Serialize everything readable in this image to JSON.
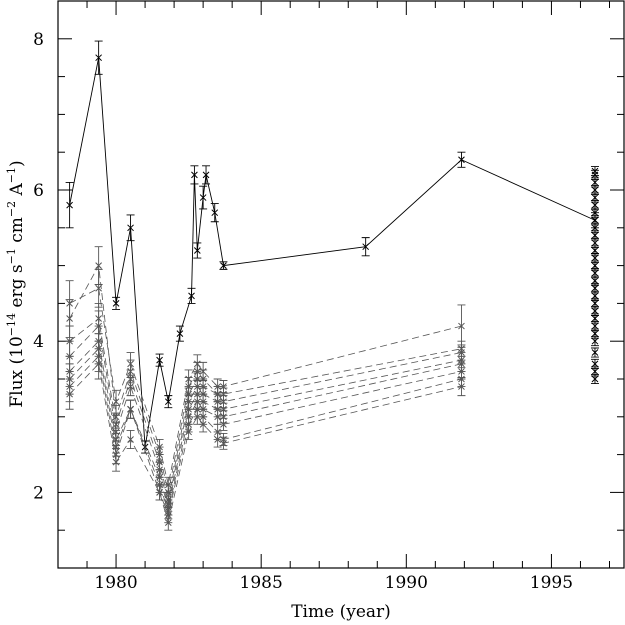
{
  "chart_data": {
    "type": "line",
    "title": "",
    "xlabel": "Time (year)",
    "ylabel_parts": [
      "Flux (10",
      "−14",
      " erg s",
      "−1",
      " cm",
      "−2",
      " A",
      "−1",
      ")"
    ],
    "xlim": [
      1978,
      1997.5
    ],
    "ylim": [
      1,
      8.5
    ],
    "x_ticks": [
      1980,
      1985,
      1990,
      1995
    ],
    "y_ticks": [
      2,
      4,
      6,
      8
    ],
    "x_minor_step": 1,
    "y_minor_step": 0.5,
    "grid": false,
    "legend": "none",
    "colors": {
      "axes": "#000000",
      "solid_series": "#000000",
      "dashed_series": "#555555"
    },
    "series": [
      {
        "style": "solid",
        "x": [
          1978.4,
          1979.4,
          1980.0,
          1980.5,
          1981.0,
          1981.5,
          1981.8,
          1982.2,
          1982.6,
          1982.7,
          1982.8,
          1983.0,
          1983.1,
          1983.4,
          1983.7,
          1988.6,
          1991.9,
          1996.5
        ],
        "y": [
          5.8,
          7.75,
          4.5,
          5.5,
          2.6,
          3.75,
          3.2,
          4.1,
          4.6,
          6.2,
          5.2,
          5.9,
          6.2,
          5.7,
          5.0,
          5.25,
          6.4,
          5.6
        ],
        "err": [
          0.3,
          0.22,
          0.08,
          0.17,
          0.08,
          0.08,
          0.08,
          0.1,
          0.1,
          0.12,
          0.1,
          0.15,
          0.12,
          0.12,
          0.05,
          0.12,
          0.1,
          0.1
        ],
        "cluster_y": [
          6.25,
          6.2,
          6.1,
          6.0,
          5.9,
          5.8,
          5.7,
          5.6,
          5.5,
          5.4,
          5.3,
          5.2,
          5.1,
          5.0,
          4.9,
          4.8,
          4.7,
          4.6,
          4.5,
          4.4,
          4.3,
          4.2,
          4.1,
          4.0,
          3.85,
          3.7,
          3.6,
          3.5
        ]
      },
      {
        "style": "dashed",
        "x": [
          1978.4,
          1979.4,
          1980.0,
          1980.5,
          1981.5,
          1981.8,
          1982.5,
          1982.8,
          1983.0,
          1983.5,
          1983.7,
          1991.9
        ],
        "y": [
          4.5,
          4.7,
          3.2,
          3.7,
          2.6,
          2.1,
          3.5,
          3.7,
          3.6,
          3.4,
          3.4,
          4.2
        ],
        "err": [
          0.3,
          0.25,
          0.15,
          0.15,
          0.1,
          0.1,
          0.12,
          0.12,
          0.12,
          0.1,
          0.08,
          0.28
        ]
      },
      {
        "style": "dashed",
        "x": [
          1978.4,
          1979.4,
          1980.0,
          1980.5,
          1981.5,
          1981.8,
          1982.5,
          1982.8,
          1983.0,
          1983.5,
          1983.7,
          1991.9
        ],
        "y": [
          4.3,
          5.0,
          3.0,
          3.6,
          2.5,
          2.0,
          3.4,
          3.6,
          3.5,
          3.3,
          3.3,
          3.9
        ],
        "err": [
          0.25,
          0.25,
          0.15,
          0.15,
          0.1,
          0.1,
          0.12,
          0.12,
          0.12,
          0.1,
          0.08,
          0.1
        ]
      },
      {
        "style": "dashed",
        "x": [
          1978.4,
          1979.4,
          1980.0,
          1980.5,
          1981.5,
          1981.8,
          1982.5,
          1982.8,
          1983.0,
          1983.5,
          1983.7,
          1991.9
        ],
        "y": [
          4.0,
          4.3,
          2.9,
          3.5,
          2.4,
          1.9,
          3.3,
          3.5,
          3.4,
          3.3,
          3.2,
          3.85
        ],
        "err": [
          0.2,
          0.2,
          0.12,
          0.12,
          0.1,
          0.1,
          0.1,
          0.1,
          0.1,
          0.1,
          0.08,
          0.1
        ]
      },
      {
        "style": "dashed",
        "x": [
          1978.4,
          1979.4,
          1980.0,
          1980.5,
          1981.5,
          1981.8,
          1982.5,
          1982.8,
          1983.0,
          1983.5,
          1983.7,
          1991.9
        ],
        "y": [
          3.8,
          4.2,
          2.8,
          3.4,
          2.3,
          1.85,
          3.2,
          3.4,
          3.3,
          3.2,
          3.1,
          3.75
        ],
        "err": [
          0.2,
          0.2,
          0.12,
          0.12,
          0.1,
          0.1,
          0.1,
          0.1,
          0.1,
          0.1,
          0.08,
          0.1
        ]
      },
      {
        "style": "dashed",
        "x": [
          1978.4,
          1979.4,
          1980.0,
          1980.5,
          1981.5,
          1981.8,
          1982.5,
          1982.8,
          1983.0,
          1983.5,
          1983.7,
          1991.9
        ],
        "y": [
          3.6,
          4.0,
          2.7,
          3.1,
          2.2,
          1.8,
          3.1,
          3.3,
          3.2,
          3.1,
          3.0,
          3.7
        ],
        "err": [
          0.2,
          0.2,
          0.12,
          0.12,
          0.1,
          0.1,
          0.1,
          0.1,
          0.1,
          0.1,
          0.08,
          0.1
        ]
      },
      {
        "style": "dashed",
        "x": [
          1978.4,
          1979.4,
          1980.0,
          1980.5,
          1981.5,
          1981.8,
          1982.5,
          1982.8,
          1983.0,
          1983.5,
          1983.7,
          1991.9
        ],
        "y": [
          3.5,
          3.9,
          2.6,
          3.1,
          2.1,
          1.75,
          3.0,
          3.2,
          3.1,
          3.0,
          2.9,
          3.6
        ],
        "err": [
          0.2,
          0.2,
          0.12,
          0.12,
          0.1,
          0.1,
          0.1,
          0.1,
          0.1,
          0.1,
          0.08,
          0.1
        ]
      },
      {
        "style": "dashed",
        "x": [
          1978.4,
          1979.4,
          1980.0,
          1980.5,
          1981.5,
          1981.8,
          1982.5,
          1982.8,
          1983.0,
          1983.5,
          1983.7,
          1991.9
        ],
        "y": [
          3.4,
          3.8,
          2.5,
          3.1,
          2.0,
          1.7,
          2.9,
          3.1,
          3.0,
          2.8,
          2.7,
          3.5
        ],
        "err": [
          0.2,
          0.2,
          0.12,
          0.12,
          0.1,
          0.1,
          0.1,
          0.1,
          0.1,
          0.1,
          0.08,
          0.1
        ]
      },
      {
        "style": "dashed",
        "x": [
          1978.4,
          1979.4,
          1980.0,
          1980.5,
          1981.5,
          1981.8,
          1982.5,
          1982.8,
          1983.0,
          1983.5,
          1983.7,
          1991.9
        ],
        "y": [
          3.3,
          3.7,
          2.4,
          2.7,
          2.0,
          1.6,
          2.8,
          3.0,
          2.9,
          2.7,
          2.65,
          3.4
        ],
        "err": [
          0.2,
          0.2,
          0.12,
          0.12,
          0.1,
          0.1,
          0.1,
          0.1,
          0.1,
          0.1,
          0.08,
          0.12
        ]
      }
    ]
  }
}
